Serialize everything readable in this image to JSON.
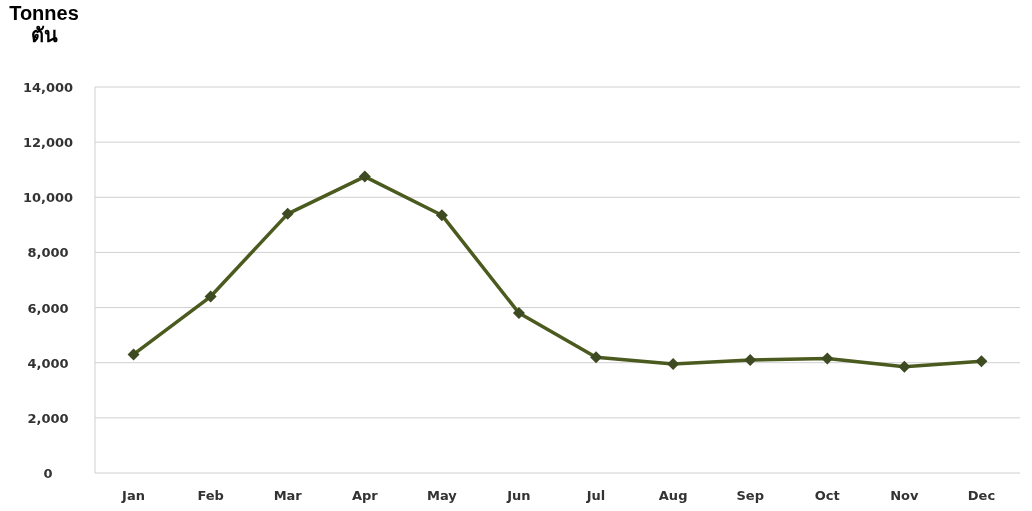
{
  "chart_data": {
    "type": "line",
    "ylabel": "Tonnes ตัน",
    "categories": [
      "Jan",
      "Feb",
      "Mar",
      "Apr",
      "May",
      "Jun",
      "Jul",
      "Aug",
      "Sep",
      "Oct",
      "Nov",
      "Dec"
    ],
    "series": [
      {
        "color": "#4b5a1f",
        "values": [
          4300,
          6400,
          9400,
          10750,
          9350,
          5800,
          4200,
          3950,
          4100,
          4150,
          3850,
          4050
        ]
      }
    ],
    "ylim": [
      0,
      14000
    ],
    "yticks": [
      {
        "value": 0,
        "label": "0"
      },
      {
        "value": 2000,
        "label": "2,000"
      },
      {
        "value": 4000,
        "label": "4,000"
      },
      {
        "value": 6000,
        "label": "6,000"
      },
      {
        "value": 8000,
        "label": "8,000"
      },
      {
        "value": 10000,
        "label": "10,000"
      },
      {
        "value": 12000,
        "label": "12,000"
      },
      {
        "value": 14000,
        "label": "14,000"
      }
    ],
    "grid": "y",
    "marker": "diamond",
    "line_style": "solid"
  }
}
